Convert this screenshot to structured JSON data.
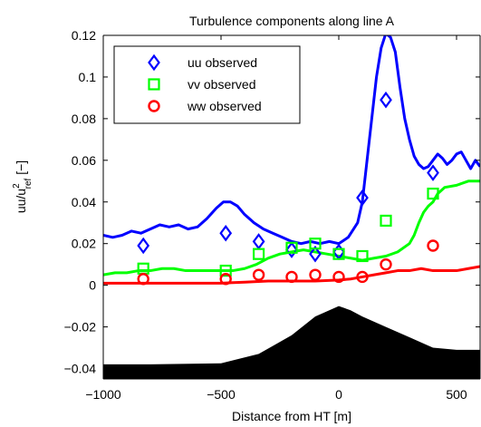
{
  "chart_data": {
    "type": "line",
    "title": "Turbulence components along line A",
    "xlabel": "Distance from HT [m]",
    "ylabel": {
      "main": "uu/u",
      "superscript": "2",
      "subscript": "ref",
      "unit": " [−]"
    },
    "xlim": [
      -1000,
      600
    ],
    "ylim": [
      -0.045,
      0.12
    ],
    "xticks": [
      -1000,
      -500,
      0,
      500
    ],
    "xtick_labels": [
      "−1000",
      "−500",
      "0",
      "500"
    ],
    "yticks": [
      -0.04,
      -0.02,
      0,
      0.02,
      0.04,
      0.06,
      0.08,
      0.1,
      0.12
    ],
    "ytick_labels": [
      "−0.04",
      "−0.02",
      "0",
      "0.02",
      "0.04",
      "0.06",
      "0.08",
      "0.1",
      "0.12"
    ],
    "grid": false,
    "legend_position": "top-left",
    "legend": [
      {
        "label": "uu observed",
        "marker": "diamond",
        "color": "#0000ff"
      },
      {
        "label": "vv observed",
        "marker": "square",
        "color": "#00ff00"
      },
      {
        "label": "ww observed",
        "marker": "circle",
        "color": "#ff0000"
      }
    ],
    "lines": [
      {
        "color": "#0000ff",
        "x": [
          -1000,
          -960,
          -920,
          -880,
          -840,
          -800,
          -760,
          -720,
          -680,
          -640,
          -600,
          -560,
          -520,
          -490,
          -460,
          -430,
          -400,
          -360,
          -320,
          -280,
          -240,
          -200,
          -160,
          -120,
          -80,
          -40,
          0,
          40,
          80,
          100,
          120,
          140,
          160,
          180,
          200,
          220,
          240,
          260,
          280,
          300,
          320,
          340,
          360,
          380,
          400,
          420,
          440,
          460,
          480,
          500,
          520,
          540,
          560,
          580,
          600
        ],
        "y": [
          0.024,
          0.023,
          0.024,
          0.026,
          0.025,
          0.027,
          0.029,
          0.028,
          0.029,
          0.027,
          0.028,
          0.032,
          0.037,
          0.04,
          0.04,
          0.038,
          0.034,
          0.03,
          0.027,
          0.025,
          0.023,
          0.021,
          0.02,
          0.021,
          0.02,
          0.021,
          0.02,
          0.023,
          0.03,
          0.04,
          0.06,
          0.08,
          0.1,
          0.114,
          0.121,
          0.119,
          0.112,
          0.095,
          0.08,
          0.07,
          0.062,
          0.058,
          0.056,
          0.057,
          0.06,
          0.063,
          0.061,
          0.058,
          0.06,
          0.063,
          0.064,
          0.06,
          0.056,
          0.06,
          0.057
        ]
      },
      {
        "color": "#00ff00",
        "x": [
          -1000,
          -950,
          -900,
          -850,
          -800,
          -750,
          -700,
          -650,
          -600,
          -550,
          -500,
          -450,
          -400,
          -350,
          -300,
          -250,
          -200,
          -150,
          -100,
          -50,
          0,
          50,
          100,
          150,
          200,
          250,
          300,
          320,
          340,
          360,
          380,
          400,
          420,
          450,
          500,
          550,
          600
        ],
        "y": [
          0.005,
          0.006,
          0.006,
          0.007,
          0.007,
          0.008,
          0.008,
          0.007,
          0.007,
          0.007,
          0.007,
          0.007,
          0.008,
          0.01,
          0.013,
          0.015,
          0.016,
          0.017,
          0.016,
          0.015,
          0.014,
          0.013,
          0.012,
          0.013,
          0.014,
          0.016,
          0.02,
          0.024,
          0.03,
          0.035,
          0.038,
          0.04,
          0.044,
          0.047,
          0.048,
          0.05,
          0.05
        ]
      },
      {
        "color": "#ff0000",
        "x": [
          -1000,
          -900,
          -800,
          -700,
          -600,
          -500,
          -400,
          -300,
          -200,
          -100,
          0,
          50,
          100,
          150,
          200,
          250,
          300,
          350,
          400,
          450,
          500,
          550,
          600
        ],
        "y": [
          0.001,
          0.001,
          0.001,
          0.001,
          0.001,
          0.001,
          0.0015,
          0.002,
          0.002,
          0.002,
          0.0025,
          0.003,
          0.004,
          0.005,
          0.006,
          0.007,
          0.007,
          0.008,
          0.007,
          0.007,
          0.007,
          0.008,
          0.009
        ]
      }
    ],
    "observations": [
      {
        "name": "uu observed",
        "marker": "diamond",
        "color": "#0000ff",
        "x": [
          -830,
          -480,
          -340,
          -200,
          -100,
          0,
          100,
          200,
          400
        ],
        "y": [
          0.019,
          0.025,
          0.021,
          0.017,
          0.015,
          0.016,
          0.042,
          0.089,
          0.054
        ]
      },
      {
        "name": "vv observed",
        "marker": "square",
        "color": "#00ff00",
        "x": [
          -830,
          -480,
          -340,
          -200,
          -100,
          0,
          100,
          200,
          400
        ],
        "y": [
          0.008,
          0.007,
          0.015,
          0.018,
          0.02,
          0.015,
          0.014,
          0.031,
          0.044
        ]
      },
      {
        "name": "ww observed",
        "marker": "circle",
        "color": "#ff0000",
        "x": [
          -830,
          -480,
          -340,
          -200,
          -100,
          0,
          100,
          200,
          400
        ],
        "y": [
          0.003,
          0.003,
          0.005,
          0.004,
          0.005,
          0.004,
          0.004,
          0.01,
          0.019
        ]
      }
    ],
    "terrain": {
      "color": "#000000",
      "x": [
        -1000,
        -800,
        -500,
        -340,
        -200,
        -100,
        0,
        50,
        100,
        200,
        300,
        400,
        500,
        600
      ],
      "y": [
        -0.038,
        -0.038,
        -0.0375,
        -0.033,
        -0.024,
        -0.015,
        -0.01,
        -0.012,
        -0.015,
        -0.02,
        -0.025,
        -0.03,
        -0.031,
        -0.031
      ]
    }
  }
}
